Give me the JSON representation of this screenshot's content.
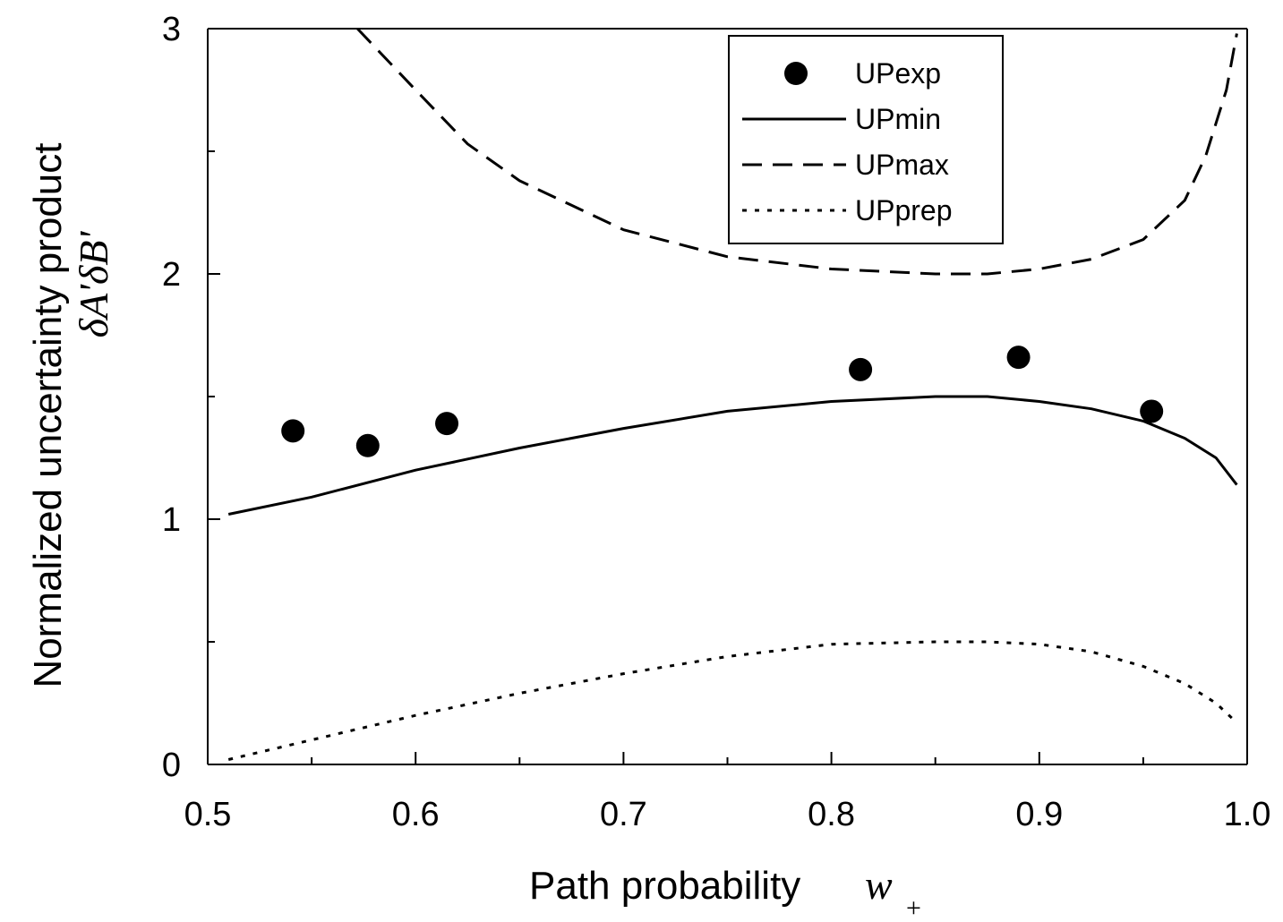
{
  "chart_data": {
    "type": "line",
    "title": "",
    "xlabel": "Path probability",
    "xlabel_symbol": "w",
    "xlabel_subscript": "+",
    "ylabel": "Normalized uncertainty product",
    "ylabel_symbol": "δA'δB'",
    "xlim": [
      0.5,
      1.0
    ],
    "ylim": [
      0,
      3
    ],
    "xticks": [
      "0.5",
      "0.6",
      "0.7",
      "0.8",
      "0.9",
      "1.0"
    ],
    "yticks": [
      "0",
      "1",
      "2",
      "3"
    ],
    "grid": false,
    "legend_position": "top-right",
    "series": [
      {
        "name": "UPexp",
        "style": "scatter",
        "color": "#000000",
        "x": [
          0.541,
          0.577,
          0.615,
          0.814,
          0.89,
          0.954
        ],
        "y": [
          1.36,
          1.3,
          1.39,
          1.61,
          1.66,
          1.44
        ]
      },
      {
        "name": "UPmin",
        "style": "solid",
        "color": "#000000",
        "x": [
          0.51,
          0.55,
          0.6,
          0.65,
          0.7,
          0.75,
          0.8,
          0.85,
          0.875,
          0.9,
          0.925,
          0.95,
          0.97,
          0.985,
          0.995
        ],
        "y": [
          1.02,
          1.09,
          1.2,
          1.29,
          1.37,
          1.44,
          1.48,
          1.5,
          1.5,
          1.48,
          1.45,
          1.4,
          1.33,
          1.25,
          1.14
        ]
      },
      {
        "name": "UPmax",
        "style": "dashed",
        "color": "#000000",
        "x": [
          0.572,
          0.6,
          0.625,
          0.65,
          0.7,
          0.75,
          0.8,
          0.85,
          0.875,
          0.9,
          0.925,
          0.95,
          0.97,
          0.98,
          0.99,
          0.995
        ],
        "y": [
          3.0,
          2.75,
          2.53,
          2.38,
          2.18,
          2.07,
          2.02,
          2.0,
          2.0,
          2.02,
          2.06,
          2.14,
          2.3,
          2.48,
          2.75,
          2.98
        ]
      },
      {
        "name": "UPprep",
        "style": "dotted",
        "color": "#000000",
        "x": [
          0.51,
          0.55,
          0.6,
          0.65,
          0.7,
          0.75,
          0.8,
          0.85,
          0.875,
          0.9,
          0.925,
          0.95,
          0.97,
          0.985,
          0.995
        ],
        "y": [
          0.02,
          0.1,
          0.2,
          0.29,
          0.37,
          0.44,
          0.49,
          0.5,
          0.5,
          0.49,
          0.46,
          0.4,
          0.33,
          0.25,
          0.17
        ]
      }
    ]
  }
}
